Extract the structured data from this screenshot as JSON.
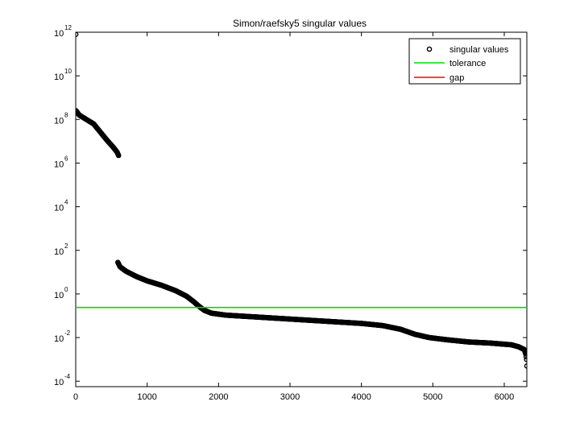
{
  "chart_data": {
    "type": "scatter",
    "title": "Simon/raefsky5 singular values",
    "xlabel": "",
    "ylabel": "",
    "xlim": [
      0,
      6316
    ],
    "ylim_log10": [
      -4.25,
      12
    ],
    "yscale": "log",
    "grid": false,
    "legend_placement": "top-right",
    "x_ticks": [
      {
        "value": 0,
        "label": "0"
      },
      {
        "value": 1000,
        "label": "1000"
      },
      {
        "value": 2000,
        "label": "2000"
      },
      {
        "value": 3000,
        "label": "3000"
      },
      {
        "value": 4000,
        "label": "4000"
      },
      {
        "value": 5000,
        "label": "5000"
      },
      {
        "value": 6000,
        "label": "6000"
      }
    ],
    "y_ticks": [
      {
        "exp": 12,
        "base": "10",
        "sup": "12"
      },
      {
        "exp": 10,
        "base": "10",
        "sup": "10"
      },
      {
        "exp": 8,
        "base": "10",
        "sup": "8"
      },
      {
        "exp": 6,
        "base": "10",
        "sup": "6"
      },
      {
        "exp": 4,
        "base": "10",
        "sup": "4"
      },
      {
        "exp": 2,
        "base": "10",
        "sup": "2"
      },
      {
        "exp": 0,
        "base": "10",
        "sup": "0"
      },
      {
        "exp": -2,
        "base": "10",
        "sup": "-2"
      },
      {
        "exp": -4,
        "base": "10",
        "sup": "-4"
      }
    ],
    "series": [
      {
        "name": "singular values",
        "marker": "circle",
        "color": "#000000",
        "segments": [
          {
            "points": [
              [
                1,
                11.9
              ]
            ]
          },
          {
            "points": [
              [
                5,
                8.4
              ],
              [
                50,
                8.2
              ],
              [
                150,
                8.0
              ],
              [
                250,
                7.8
              ],
              [
                350,
                7.4
              ],
              [
                450,
                7.0
              ],
              [
                520,
                6.75
              ],
              [
                580,
                6.5
              ],
              [
                600,
                6.35
              ]
            ]
          },
          {
            "points": [
              [
                590,
                1.45
              ],
              [
                620,
                1.25
              ],
              [
                700,
                1.05
              ],
              [
                850,
                0.8
              ],
              [
                1000,
                0.6
              ],
              [
                1200,
                0.4
              ],
              [
                1400,
                0.15
              ],
              [
                1550,
                -0.1
              ],
              [
                1650,
                -0.35
              ],
              [
                1720,
                -0.55
              ],
              [
                1800,
                -0.75
              ],
              [
                1900,
                -0.88
              ],
              [
                2100,
                -0.97
              ],
              [
                2500,
                -1.05
              ],
              [
                3000,
                -1.15
              ],
              [
                3500,
                -1.25
              ],
              [
                4000,
                -1.35
              ],
              [
                4300,
                -1.45
              ],
              [
                4550,
                -1.62
              ],
              [
                4750,
                -1.85
              ],
              [
                4950,
                -2.0
              ],
              [
                5200,
                -2.1
              ],
              [
                5500,
                -2.2
              ],
              [
                5800,
                -2.25
              ],
              [
                6100,
                -2.33
              ],
              [
                6200,
                -2.42
              ],
              [
                6280,
                -2.55
              ],
              [
                6300,
                -2.75
              ],
              [
                6312,
                -3.0
              ],
              [
                6316,
                -3.3
              ]
            ]
          }
        ]
      },
      {
        "name": "tolerance",
        "type": "hline",
        "value_log10": -0.62,
        "color": "#00dd00"
      },
      {
        "name": "gap",
        "type": "line",
        "color": "#ff0000"
      }
    ]
  }
}
